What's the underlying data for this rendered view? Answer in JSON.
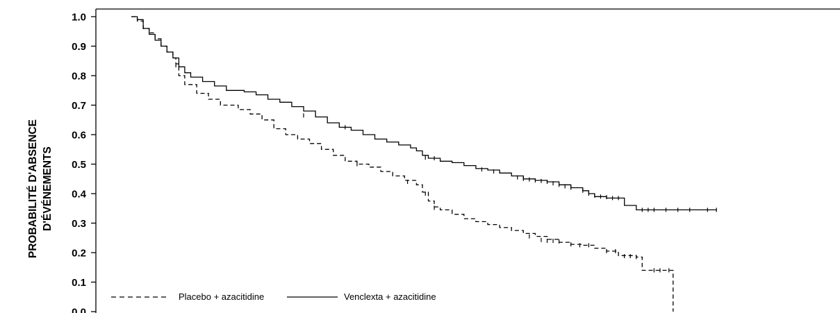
{
  "chart_data": {
    "type": "line",
    "title": "",
    "xlabel": "",
    "ylabel": [
      "PROBABILITÉ D'ABSENCE",
      "D'ÉVÉNEMENTS"
    ],
    "ylim": [
      0.0,
      1.0
    ],
    "xlim": [
      -5,
      102
    ],
    "yticks": [
      "0.0",
      "0.1",
      "0.2",
      "0.3",
      "0.4",
      "0.5",
      "0.6",
      "0.7",
      "0.8",
      "0.9",
      "1.0"
    ],
    "grid": false,
    "legend": {
      "placement": "bottom-left",
      "entries": [
        {
          "label": "Placebo + azacitidine",
          "style": "dashed"
        },
        {
          "label": "Venclexta + azacitidine",
          "style": "solid"
        }
      ]
    },
    "series": [
      {
        "name": "Placebo + azacitidine",
        "style": "dashed",
        "points": [
          [
            0,
            1.0
          ],
          [
            0.5,
            1.0
          ],
          [
            1,
            0.985
          ],
          [
            2,
            0.96
          ],
          [
            3,
            0.945
          ],
          [
            4,
            0.925
          ],
          [
            5,
            0.9
          ],
          [
            6,
            0.88
          ],
          [
            7,
            0.86
          ],
          [
            7.5,
            0.84
          ],
          [
            8,
            0.8
          ],
          [
            9,
            0.77
          ],
          [
            11,
            0.74
          ],
          [
            13,
            0.72
          ],
          [
            15,
            0.7
          ],
          [
            18,
            0.685
          ],
          [
            20,
            0.67
          ],
          [
            22,
            0.65
          ],
          [
            24,
            0.62
          ],
          [
            26,
            0.6
          ],
          [
            28,
            0.585
          ],
          [
            30,
            0.57
          ],
          [
            32,
            0.55
          ],
          [
            34,
            0.53
          ],
          [
            36,
            0.51
          ],
          [
            38,
            0.5
          ],
          [
            40,
            0.49
          ],
          [
            42,
            0.475
          ],
          [
            44,
            0.46
          ],
          [
            46,
            0.445
          ],
          [
            48,
            0.43
          ],
          [
            49,
            0.405
          ],
          [
            50,
            0.375
          ],
          [
            51,
            0.355
          ],
          [
            52,
            0.345
          ],
          [
            54,
            0.33
          ],
          [
            56,
            0.315
          ],
          [
            58,
            0.305
          ],
          [
            60,
            0.295
          ],
          [
            62,
            0.285
          ],
          [
            64,
            0.275
          ],
          [
            66,
            0.265
          ],
          [
            68,
            0.255
          ],
          [
            70,
            0.245
          ],
          [
            72,
            0.235
          ],
          [
            74,
            0.228
          ],
          [
            76,
            0.225
          ],
          [
            78,
            0.215
          ],
          [
            80,
            0.205
          ],
          [
            82,
            0.19
          ],
          [
            85,
            0.185
          ],
          [
            86,
            0.14
          ],
          [
            91,
            0.14
          ],
          [
            91.2,
            0.0
          ]
        ],
        "censored": [
          [
            7.5,
            0.835
          ],
          [
            38,
            0.5
          ],
          [
            46.5,
            0.44
          ],
          [
            49.5,
            0.4
          ],
          [
            51,
            0.352
          ],
          [
            67,
            0.255
          ],
          [
            69,
            0.243
          ],
          [
            70,
            0.24
          ],
          [
            71,
            0.24
          ],
          [
            72,
            0.238
          ],
          [
            74,
            0.228
          ],
          [
            75.5,
            0.225
          ],
          [
            77,
            0.225
          ],
          [
            80,
            0.205
          ],
          [
            81.5,
            0.205
          ],
          [
            83,
            0.188
          ],
          [
            84,
            0.188
          ],
          [
            85,
            0.185
          ],
          [
            88,
            0.14
          ],
          [
            89,
            0.14
          ],
          [
            90.5,
            0.14
          ]
        ]
      },
      {
        "name": "Venclexta + azacitidine",
        "style": "solid",
        "points": [
          [
            0,
            1.0
          ],
          [
            0.5,
            1.0
          ],
          [
            1,
            0.99
          ],
          [
            2,
            0.96
          ],
          [
            3,
            0.94
          ],
          [
            4,
            0.92
          ],
          [
            5,
            0.9
          ],
          [
            6,
            0.88
          ],
          [
            7,
            0.86
          ],
          [
            8,
            0.83
          ],
          [
            9,
            0.81
          ],
          [
            10,
            0.795
          ],
          [
            12,
            0.78
          ],
          [
            14,
            0.765
          ],
          [
            16,
            0.75
          ],
          [
            19,
            0.745
          ],
          [
            21,
            0.735
          ],
          [
            23,
            0.72
          ],
          [
            25,
            0.71
          ],
          [
            27,
            0.695
          ],
          [
            29,
            0.68
          ],
          [
            31,
            0.66
          ],
          [
            33,
            0.64
          ],
          [
            35,
            0.625
          ],
          [
            37,
            0.615
          ],
          [
            39,
            0.6
          ],
          [
            41,
            0.585
          ],
          [
            43,
            0.575
          ],
          [
            45,
            0.565
          ],
          [
            47,
            0.555
          ],
          [
            48,
            0.545
          ],
          [
            49,
            0.53
          ],
          [
            50,
            0.52
          ],
          [
            52,
            0.51
          ],
          [
            54,
            0.505
          ],
          [
            56,
            0.495
          ],
          [
            58,
            0.485
          ],
          [
            60,
            0.48
          ],
          [
            62,
            0.47
          ],
          [
            64,
            0.46
          ],
          [
            66,
            0.45
          ],
          [
            68,
            0.445
          ],
          [
            70,
            0.44
          ],
          [
            72,
            0.43
          ],
          [
            74,
            0.42
          ],
          [
            76,
            0.41
          ],
          [
            77,
            0.4
          ],
          [
            78,
            0.39
          ],
          [
            80,
            0.385
          ],
          [
            82,
            0.385
          ],
          [
            83,
            0.36
          ],
          [
            84,
            0.36
          ],
          [
            85,
            0.345
          ],
          [
            90,
            0.345
          ],
          [
            95,
            0.345
          ],
          [
            98.5,
            0.345
          ]
        ],
        "censored": [
          [
            2,
            0.965
          ],
          [
            29,
            0.665
          ],
          [
            36,
            0.625
          ],
          [
            49.5,
            0.522
          ],
          [
            51,
            0.52
          ],
          [
            59,
            0.482
          ],
          [
            61,
            0.475
          ],
          [
            65,
            0.455
          ],
          [
            66,
            0.45
          ],
          [
            67,
            0.448
          ],
          [
            68,
            0.445
          ],
          [
            69,
            0.443
          ],
          [
            70,
            0.44
          ],
          [
            71,
            0.435
          ],
          [
            72,
            0.43
          ],
          [
            73,
            0.425
          ],
          [
            74,
            0.42
          ],
          [
            76,
            0.41
          ],
          [
            77,
            0.4
          ],
          [
            78,
            0.393
          ],
          [
            79,
            0.39
          ],
          [
            80,
            0.388
          ],
          [
            81,
            0.385
          ],
          [
            82,
            0.385
          ],
          [
            86,
            0.345
          ],
          [
            87,
            0.345
          ],
          [
            88,
            0.345
          ],
          [
            90,
            0.345
          ],
          [
            92,
            0.345
          ],
          [
            94,
            0.345
          ],
          [
            97,
            0.345
          ],
          [
            98.5,
            0.345
          ]
        ]
      }
    ]
  }
}
